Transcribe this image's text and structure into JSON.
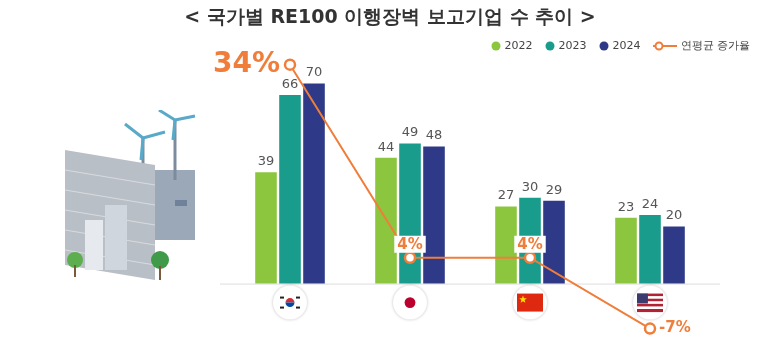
{
  "chart_data": {
    "type": "bar",
    "title": "< 국가별 RE100 이행장벽 보고기업 수 추이 >",
    "categories": [
      null,
      null,
      null,
      null
    ],
    "series": [
      {
        "name": "2022",
        "color": "#8cc63f",
        "values": [
          39,
          44,
          27,
          23
        ]
      },
      {
        "name": "2023",
        "color": "#1a9c8c",
        "values": [
          66,
          49,
          30,
          24
        ]
      },
      {
        "name": "2024",
        "color": "#2e3a87",
        "values": [
          70,
          48,
          29,
          20
        ]
      },
      {
        "name": "연평균 증가율",
        "type": "line",
        "axis": "y2",
        "color": "#f07d3a",
        "marker": "circle",
        "values": [
          34,
          4,
          4,
          -7
        ],
        "value_labels": [
          "34%",
          "4%",
          "4%",
          "-7%"
        ]
      }
    ],
    "ylim": [
      -18,
      80
    ],
    "y2lim": [
      -8,
      35.5
    ],
    "tick_labels": false,
    "grid": false,
    "legend": "top-right",
    "data_labels": true
  }
}
